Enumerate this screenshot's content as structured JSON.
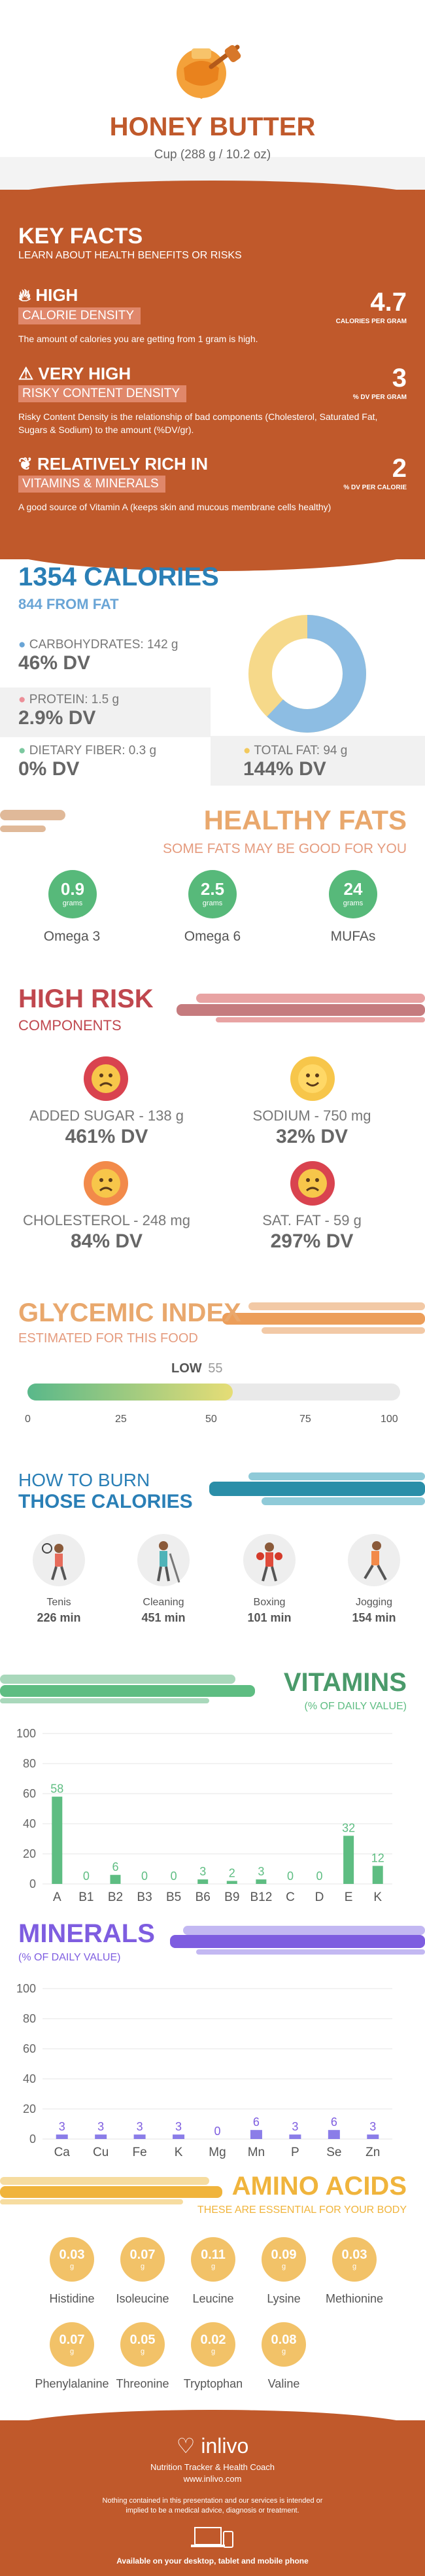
{
  "header": {
    "title": "HONEY BUTTER",
    "subtitle": "Cup (288 g / 10.2 oz)"
  },
  "key_facts": {
    "title": "KEY FACTS",
    "subtitle": "LEARN ABOUT HEALTH BENEFITS OR RISKS",
    "items": [
      {
        "icon": "fire-icon",
        "level": "HIGH",
        "label": "CALORIE DENSITY",
        "value": "4.7",
        "unit": "CALORIES PER GRAM",
        "desc": "The amount of calories you are getting from 1 gram is high."
      },
      {
        "icon": "warning-icon",
        "level": "VERY HIGH",
        "label": "RISKY CONTENT DENSITY",
        "value": "3",
        "unit": "% DV PER GRAM",
        "desc": "Risky Content Density is the relationship of bad components (Cholesterol, Saturated Fat, Sugars & Sodium) to the amount (%DV/gr)."
      },
      {
        "icon": "leaf-icon",
        "level": "RELATIVELY RICH IN",
        "label": "VITAMINS & MINERALS",
        "value": "2",
        "unit": "% DV PER CALORIE",
        "desc": "A good source of Vitamin A (keeps skin and mucous membrane cells healthy)"
      }
    ]
  },
  "calories": {
    "title": "1354 CALORIES",
    "subtitle": "844 FROM FAT",
    "carbs_label": "CARBOHYDRATES: 142 g",
    "carbs_dv": "46% DV",
    "protein_label": "PROTEIN: 1.5 g",
    "protein_dv": "2.9% DV",
    "fiber_label": "DIETARY FIBER: 0.3 g",
    "fiber_dv": "0% DV",
    "fat_label": "TOTAL FAT: 94 g",
    "fat_dv": "144% DV",
    "donut": {
      "fat": 62,
      "carbs": 38,
      "fat_color": "#8dbde3",
      "carbs_color": "#f6d98a"
    }
  },
  "healthy_fats": {
    "title": "HEALTHY FATS",
    "subtitle": "SOME FATS MAY BE GOOD FOR YOU",
    "items": [
      {
        "value": "0.9",
        "unit": "grams",
        "name": "Omega 3"
      },
      {
        "value": "2.5",
        "unit": "grams",
        "name": "Omega 6"
      },
      {
        "value": "24",
        "unit": "grams",
        "name": "MUFAs"
      }
    ]
  },
  "high_risk": {
    "title": "HIGH RISK",
    "subtitle": "COMPONENTS",
    "items": [
      {
        "label": "ADDED SUGAR - 138 g",
        "dv": "461% DV",
        "icon": "sad-face-icon",
        "color": "#d9434f"
      },
      {
        "label": "SODIUM - 750 mg",
        "dv": "32% DV",
        "icon": "happy-face-icon",
        "color": "#f7c64a"
      },
      {
        "label": "CHOLESTEROL - 248 mg",
        "dv": "84% DV",
        "icon": "sad-face-icon",
        "color": "#f28a4a"
      },
      {
        "label": "SAT. FAT - 59 g",
        "dv": "297% DV",
        "icon": "sad-face-icon",
        "color": "#d9434f"
      }
    ]
  },
  "glycemic": {
    "title": "GLYCEMIC INDEX",
    "subtitle": "ESTIMATED FOR THIS FOOD",
    "level": "LOW",
    "value": 55,
    "value_text": "55",
    "ticks": [
      "0",
      "25",
      "50",
      "75",
      "100"
    ]
  },
  "burn": {
    "title1": "HOW TO BURN",
    "title2": "THOSE CALORIES",
    "items": [
      {
        "name": "Tenis",
        "time": "226 min",
        "icon": "tennis-icon"
      },
      {
        "name": "Cleaning",
        "time": "451 min",
        "icon": "cleaning-icon"
      },
      {
        "name": "Boxing",
        "time": "101 min",
        "icon": "boxing-icon"
      },
      {
        "name": "Jogging",
        "time": "154 min",
        "icon": "jogging-icon"
      }
    ]
  },
  "chart_data": [
    {
      "type": "bar",
      "title": "VITAMINS",
      "subtitle": "(% OF DAILY VALUE)",
      "categories": [
        "A",
        "B1",
        "B2",
        "B3",
        "B5",
        "B6",
        "B9",
        "B12",
        "C",
        "D",
        "E",
        "K"
      ],
      "values": [
        58,
        0,
        6,
        0,
        0,
        3,
        2,
        3,
        0,
        0,
        32,
        12
      ],
      "ylim": [
        0,
        100
      ],
      "yticks": [
        "0",
        "20",
        "40",
        "60",
        "80",
        "100"
      ],
      "color": "#5ebd82"
    },
    {
      "type": "bar",
      "title": "MINERALS",
      "subtitle": "(% OF DAILY VALUE)",
      "categories": [
        "Ca",
        "Cu",
        "Fe",
        "K",
        "Mg",
        "Mn",
        "P",
        "Se",
        "Zn"
      ],
      "values": [
        3,
        3,
        3,
        3,
        0,
        6,
        3,
        6,
        3
      ],
      "ylim": [
        0,
        100
      ],
      "yticks": [
        "0",
        "20",
        "40",
        "60",
        "80",
        "100"
      ],
      "color": "#8b7de8"
    }
  ],
  "amino": {
    "title": "AMINO ACIDS",
    "subtitle": "THESE ARE ESSENTIAL FOR YOUR BODY",
    "unit": "g",
    "items": [
      {
        "value": "0.03",
        "name": "Histidine"
      },
      {
        "value": "0.07",
        "name": "Isoleucine"
      },
      {
        "value": "0.11",
        "name": "Leucine"
      },
      {
        "value": "0.09",
        "name": "Lysine"
      },
      {
        "value": "0.03",
        "name": "Methionine"
      },
      {
        "value": "0.07",
        "name": "Phenylalanine"
      },
      {
        "value": "0.05",
        "name": "Threonine"
      },
      {
        "value": "0.02",
        "name": "Tryptophan"
      },
      {
        "value": "0.08",
        "name": "Valine"
      }
    ]
  },
  "footer": {
    "brand": "inlivo",
    "tagline": "Nutrition Tracker & Health Coach",
    "url": "www.inlivo.com",
    "disclaimer": "Nothing contained in this presentation and our services is intended or implied to be a medical advice, diagnosis or treatment.",
    "available": "Available on your desktop, tablet and mobile phone"
  },
  "colors": {
    "brown": "#c0592b",
    "orange": "#e78a3c",
    "blue": "#2a7fb6",
    "green": "#5ebd82",
    "red": "#c0474e",
    "teal": "#2a8ea8",
    "purple": "#7e5de0",
    "amber": "#f0b43c"
  }
}
